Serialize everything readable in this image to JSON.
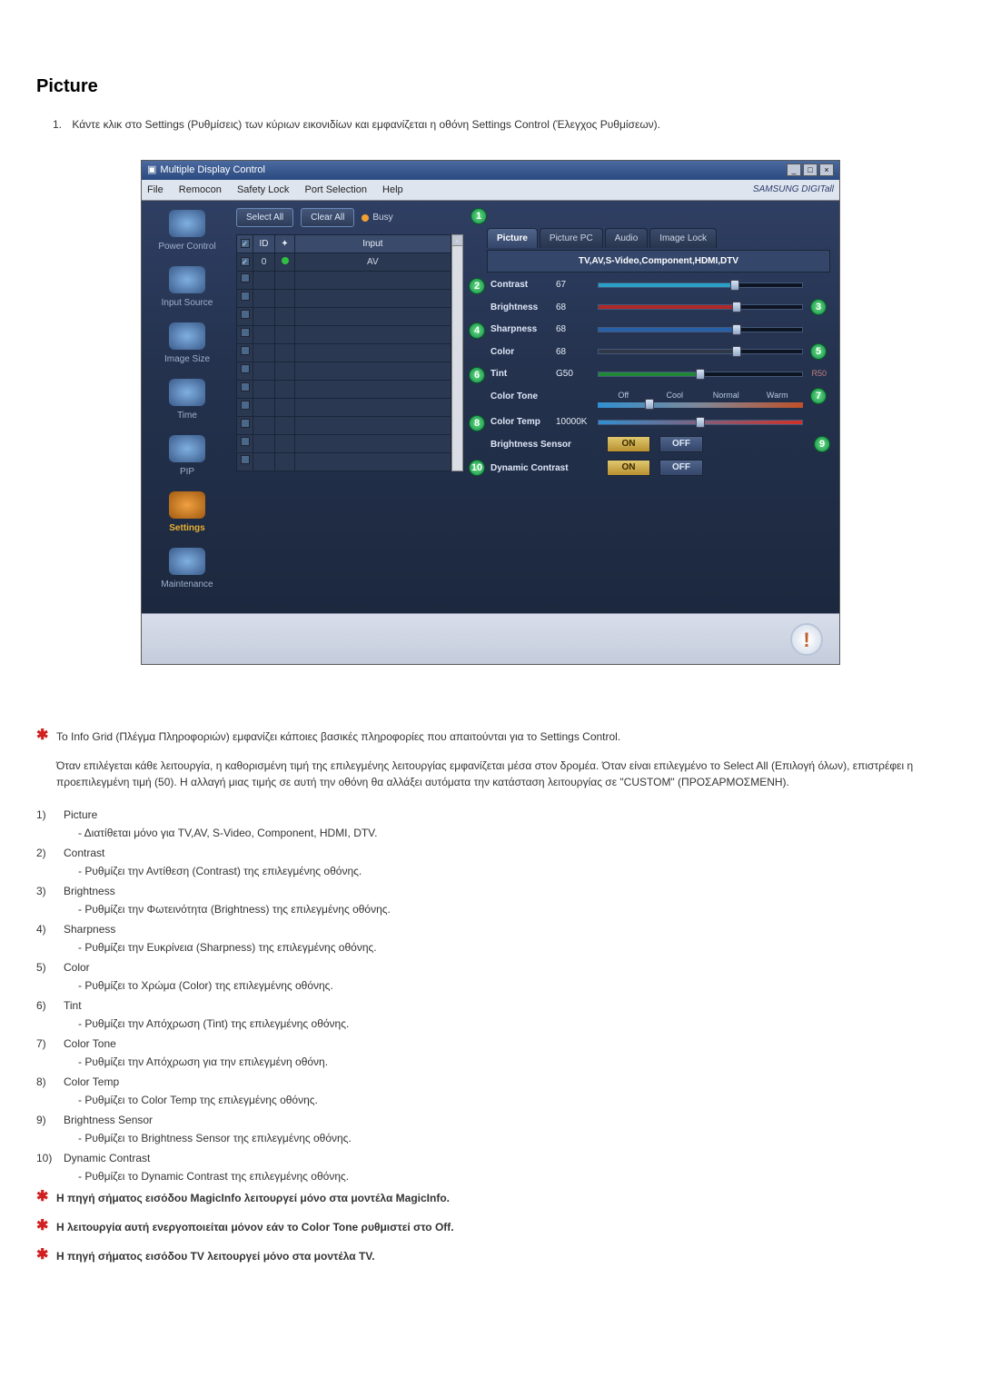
{
  "page_title": "Picture",
  "intro_num": "1.",
  "intro_text": "Κάντε κλικ στο Settings (Ρυθμίσεις) των κύριων εικονιδίων και εμφανίζεται η οθόνη Settings Control (Έλεγχος Ρυθμίσεων).",
  "window": {
    "title": "Multiple Display Control",
    "menu": {
      "file": "File",
      "remocon": "Remocon",
      "safety": "Safety Lock",
      "port": "Port Selection",
      "help": "Help"
    },
    "brand": "SAMSUNG DIGITall",
    "sidebar": {
      "power": "Power Control",
      "input": "Input Source",
      "image": "Image Size",
      "time": "Time",
      "pip": "PIP",
      "settings": "Settings",
      "maint": "Maintenance"
    },
    "btn_select_all": "Select All",
    "btn_clear_all": "Clear All",
    "busy": "Busy",
    "grid": {
      "col_id": "ID",
      "col_input": "Input",
      "row_id": "0",
      "row_input": "AV"
    },
    "tabs": {
      "picture": "Picture",
      "picture_pc": "Picture PC",
      "audio": "Audio",
      "lock": "Image Lock"
    },
    "subheader": "TV,AV,S-Video,Component,HDMI,DTV",
    "rows": {
      "contrast": {
        "label": "Contrast",
        "value": "67",
        "fill_color": "#2aa0c8",
        "fill_pct": 67
      },
      "brightness": {
        "label": "Brightness",
        "value": "68",
        "fill_color": "#b02828",
        "fill_pct": 68
      },
      "sharpness": {
        "label": "Sharpness",
        "value": "68",
        "fill_color": "#2860a8",
        "fill_pct": 68
      },
      "color": {
        "label": "Color",
        "value": "68",
        "fill_color": "#303848",
        "fill_pct": 68
      },
      "tint": {
        "label": "Tint",
        "value": "G50",
        "fill_color": "#208838",
        "fill_pct": 50,
        "end": "R50"
      },
      "tone": {
        "label": "Color Tone",
        "opts": {
          "off": "Off",
          "cool": "Cool",
          "normal": "Normal",
          "warm": "Warm"
        }
      },
      "temp": {
        "label": "Color Temp",
        "value": "10000K",
        "fill_color": "#3090d0",
        "grad_to": "#d03028",
        "fill_pct": 50
      },
      "bsensor": {
        "label": "Brightness Sensor"
      },
      "dcontrast": {
        "label": "Dynamic Contrast"
      }
    },
    "on": "ON",
    "off": "OFF"
  },
  "callouts": {
    "c1": "1",
    "c2": "2",
    "c3": "3",
    "c4": "4",
    "c5": "5",
    "c6": "6",
    "c7": "7",
    "c8": "8",
    "c9": "9",
    "c10": "10"
  },
  "info_grid_note": "Το Info Grid (Πλέγμα Πληροφοριών) εμφανίζει κάποιες βασικές πληροφορίες που απαιτούνται για το Settings Control.",
  "block_note": "Όταν επιλέγεται κάθε λειτουργία, η καθορισμένη τιμή της επιλεγμένης λειτουργίας εμφανίζεται μέσα στον δρομέα. Όταν είναι επιλεγμένο το Select All (Επιλογή όλων), επιστρέφει η προεπιλεγμένη τιμή (50). Η αλλαγή μιας τιμής σε αυτή την οθόνη θα αλλάξει αυτόματα την κατάσταση λειτουργίας σε \"CUSTOM\" (ΠΡΟΣΑΡΜΟΣΜΕΝΗ).",
  "defs": [
    {
      "n": "1)",
      "t": "Picture",
      "d": "- Διατίθεται μόνο για TV,AV, S-Video, Component, HDMI, DTV."
    },
    {
      "n": "2)",
      "t": "Contrast",
      "d": "- Ρυθμίζει την Αντίθεση (Contrast) της επιλεγμένης οθόνης."
    },
    {
      "n": "3)",
      "t": "Brightness",
      "d": "- Ρυθμίζει την Φωτεινότητα (Brightness) της επιλεγμένης οθόνης."
    },
    {
      "n": "4)",
      "t": "Sharpness",
      "d": "- Ρυθμίζει την Ευκρίνεια (Sharpness) της επιλεγμένης οθόνης."
    },
    {
      "n": "5)",
      "t": "Color",
      "d": "- Ρυθμίζει το Χρώμα (Color) της επιλεγμένης οθόνης."
    },
    {
      "n": "6)",
      "t": "Tint",
      "d": "- Ρυθμίζει την Απόχρωση (Tint) της επιλεγμένης οθόνης."
    },
    {
      "n": "7)",
      "t": "Color Tone",
      "d": "- Ρυθμίζει την Απόχρωση για την επιλεγμένη οθόνη."
    },
    {
      "n": "8)",
      "t": "Color Temp",
      "d": "- Ρυθμίζει το Color Temp της επιλεγμένης οθόνης."
    },
    {
      "n": "9)",
      "t": "Brightness Sensor",
      "d": "- Ρυθμίζει το Brightness Sensor της επιλεγμένης οθόνης."
    },
    {
      "n": "10)",
      "t": "Dynamic Contrast",
      "d": "- Ρυθμίζει το Dynamic Contrast της επιλεγμένης οθόνης."
    }
  ],
  "bold_notes": [
    "Η πηγή σήματος εισόδου MagicInfo λειτουργεί μόνο στα μοντέλα MagicInfo.",
    "Η λειτουργία αυτή ενεργοποιείται μόνον εάν το Color Tone ρυθμιστεί στο Off.",
    "Η πηγή σήματος εισόδου TV λειτουργεί μόνο στα μοντέλα TV."
  ]
}
